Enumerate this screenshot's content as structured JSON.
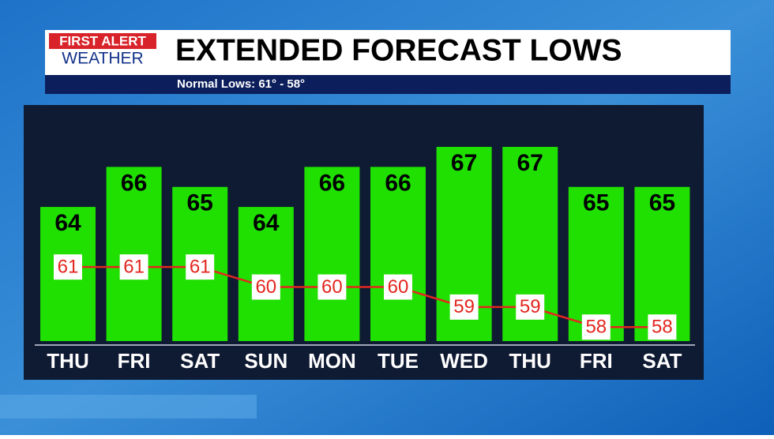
{
  "logo": {
    "line1": "FIRST ALERT",
    "line2": "WEATHER"
  },
  "chart_data": {
    "type": "bar",
    "title": "EXTENDED FORECAST LOWS",
    "subtitle": "Normal Lows: 61° - 58°",
    "categories": [
      "THU",
      "FRI",
      "SAT",
      "SUN",
      "MON",
      "TUE",
      "WED",
      "THU",
      "FRI",
      "SAT"
    ],
    "series": [
      {
        "name": "Forecast Lows",
        "type": "bar",
        "color": "#1fe000",
        "values": [
          64,
          66,
          65,
          64,
          66,
          66,
          67,
          67,
          65,
          65
        ]
      },
      {
        "name": "Normal Lows",
        "type": "line",
        "color": "#e3261f",
        "values": [
          61,
          61,
          61,
          60,
          60,
          60,
          59,
          59,
          58,
          58
        ]
      }
    ]
  }
}
